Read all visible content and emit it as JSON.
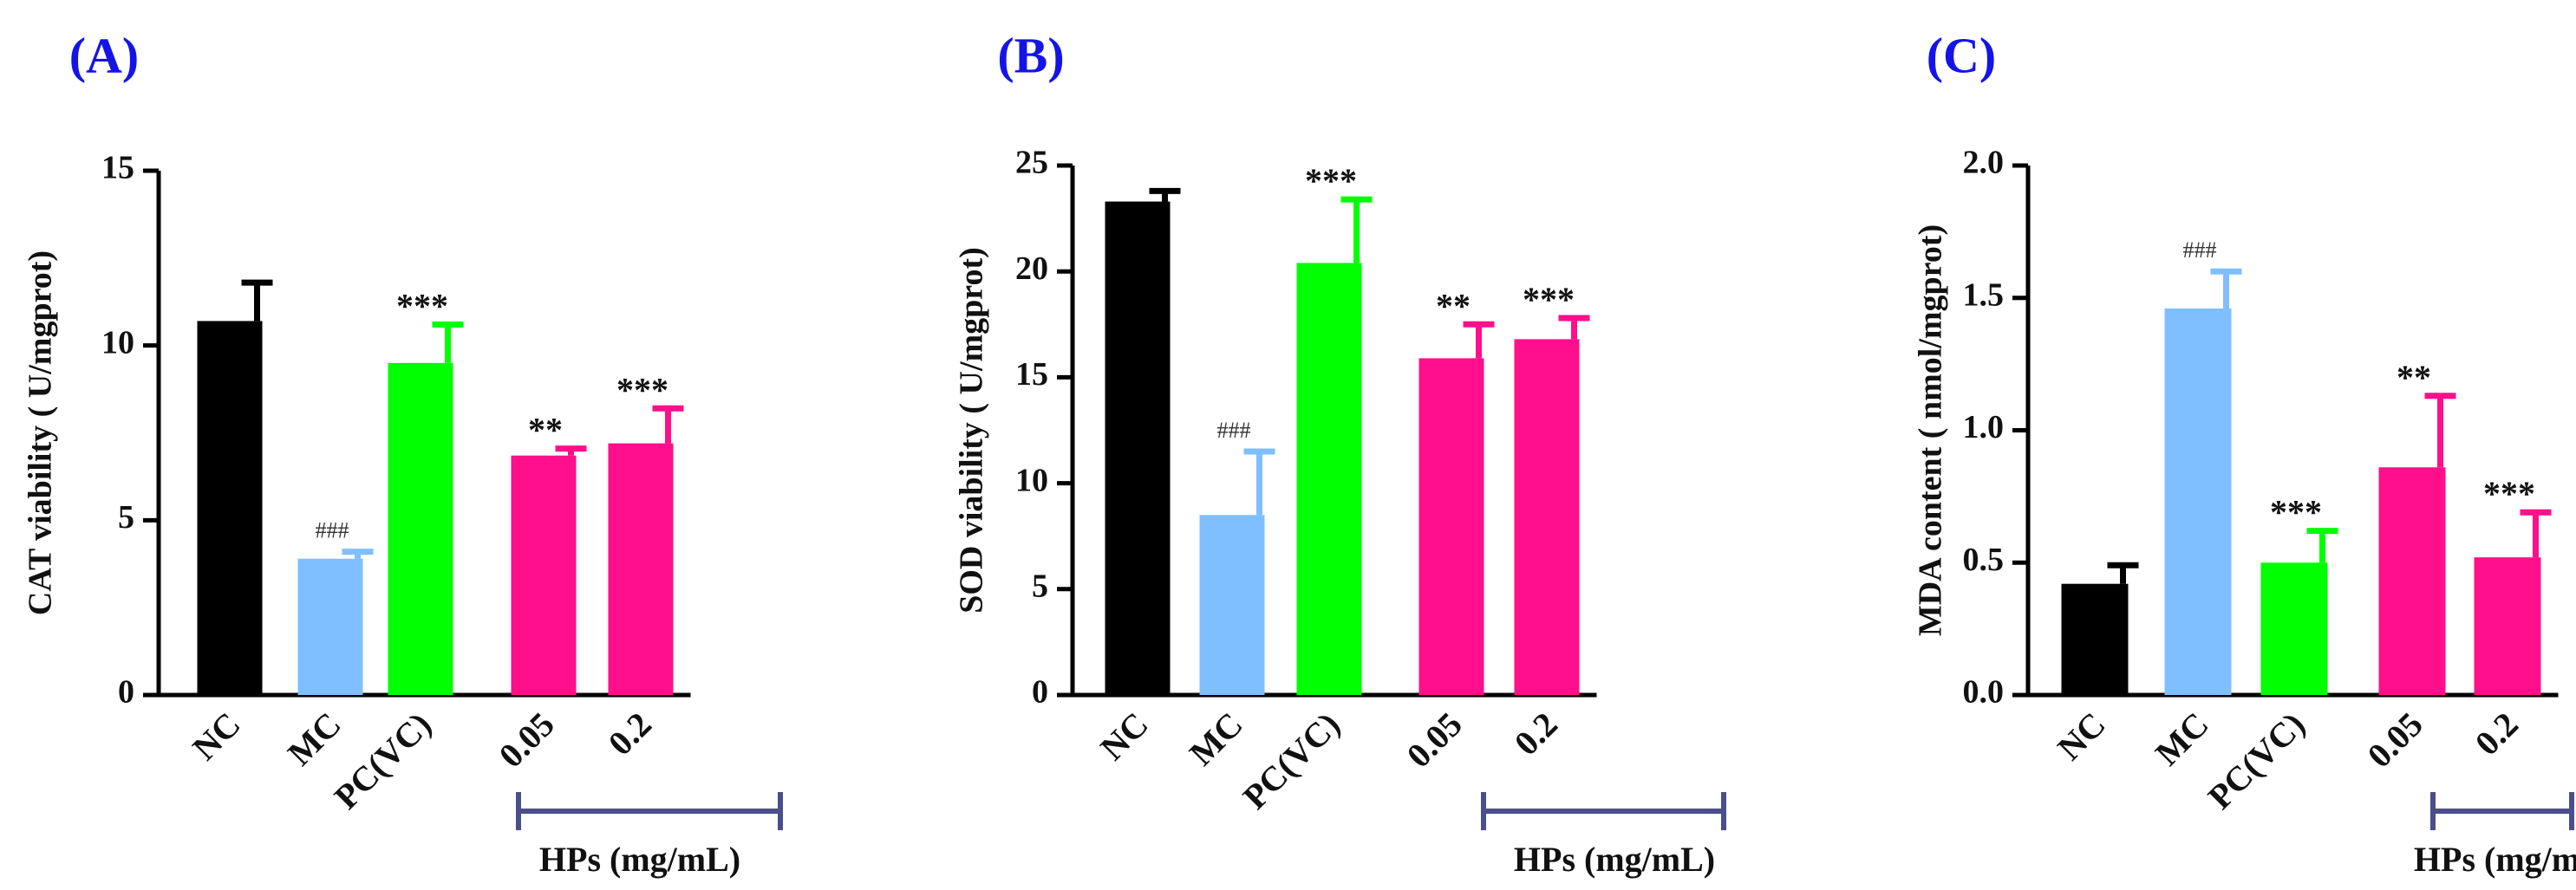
{
  "colors": {
    "NC": "#000000",
    "MC": "#7fbfff",
    "PC(VC)": "#00ff00",
    "0.05": "#ff0f8b",
    "0.2": "#ff0f8b",
    "panel_label": "#1414e8",
    "bracket": "#4a4e8a",
    "axis": "#000000"
  },
  "chart_data": [
    {
      "panel": "(A)",
      "type": "bar",
      "ylabel": "CAT viability ( U/mgprot)",
      "ylim": [
        0,
        15
      ],
      "yticks": [
        0,
        5,
        10,
        15
      ],
      "ytick_labels": [
        "0",
        "5",
        "10",
        "15"
      ],
      "categories": [
        "NC",
        "MC",
        "PC(VC)",
        "0.05",
        "0.2"
      ],
      "values": [
        10.7,
        3.9,
        9.5,
        6.85,
        7.2
      ],
      "errors": [
        1.1,
        0.2,
        1.1,
        0.2,
        1.0
      ],
      "annotations": [
        "",
        "###",
        "***",
        "**",
        "***"
      ],
      "group_label": "HPs (mg/mL)"
    },
    {
      "panel": "(B)",
      "type": "bar",
      "ylabel": "SOD viability ( U/mgprot)",
      "ylim": [
        0,
        25
      ],
      "yticks": [
        0,
        5,
        10,
        15,
        20,
        25
      ],
      "ytick_labels": [
        "0",
        "5",
        "10",
        "15",
        "20",
        "25"
      ],
      "categories": [
        "NC",
        "MC",
        "PC(VC)",
        "0.05",
        "0.2"
      ],
      "values": [
        23.3,
        8.5,
        20.4,
        15.9,
        16.8
      ],
      "errors": [
        0.5,
        3.0,
        3.0,
        1.6,
        1.0
      ],
      "annotations": [
        "",
        "###",
        "***",
        "**",
        "***"
      ],
      "group_label": "HPs (mg/mL)"
    },
    {
      "panel": "(C)",
      "type": "bar",
      "ylabel": "MDA content ( nmol/mgprot)",
      "ylim": [
        0,
        2.0
      ],
      "yticks": [
        0,
        0.5,
        1.0,
        1.5,
        2.0
      ],
      "ytick_labels": [
        "0.0",
        "0.5",
        "1.0",
        "1.5",
        "2.0"
      ],
      "categories": [
        "NC",
        "MC",
        "PC(VC)",
        "0.05",
        "0.2"
      ],
      "values": [
        0.42,
        1.46,
        0.5,
        0.86,
        0.52
      ],
      "errors": [
        0.07,
        0.14,
        0.12,
        0.27,
        0.17
      ],
      "annotations": [
        "",
        "###",
        "***",
        "**",
        "***"
      ],
      "group_label": "HPs (mg/mL)"
    }
  ]
}
